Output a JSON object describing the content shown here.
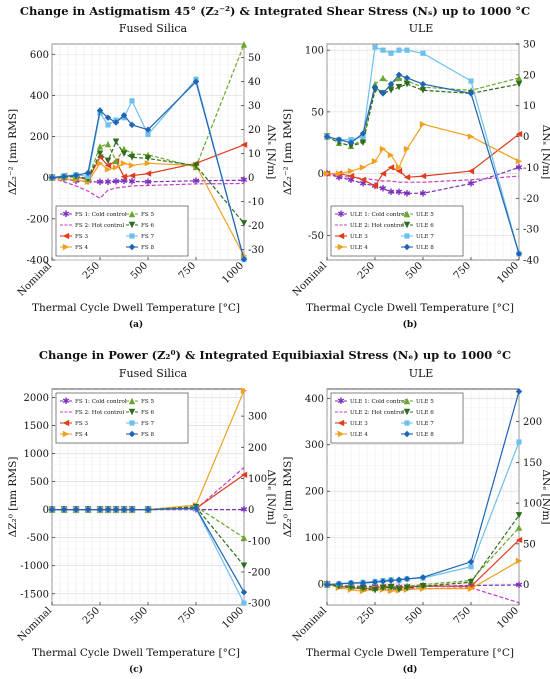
{
  "titles": {
    "top": "Change in Astigmatism 45° (Z₂⁻²) & Integrated Shear Stress (Nₛ) up to 1000 °C",
    "bottom": "Change in Power (Z₂⁰) & Integrated Equibiaxial Stress (Nₑ) up to 1000 °C"
  },
  "x_axis": {
    "label": "Thermal Cycle Dwell Temperature [°C]",
    "ticks": [
      {
        "x": 0,
        "label": "Nominal"
      },
      {
        "x": 3,
        "label": "250"
      },
      {
        "x": 6,
        "label": "500"
      },
      {
        "x": 9,
        "label": "750"
      },
      {
        "x": 12,
        "label": "1000"
      }
    ],
    "range": [
      0,
      12
    ]
  },
  "chart_data": [
    {
      "type": "line",
      "subtitle": "Fused Silica",
      "panel_label": "(a)",
      "ylabel": "ΔZ₂⁻² [nm RMS]",
      "y2label": "ΔNₛ [N/m]",
      "ylim": [
        -400,
        650
      ],
      "yticks": [
        -400,
        -200,
        0,
        200,
        400,
        600
      ],
      "y2lim": [
        -34.3,
        55.7
      ],
      "y2ticks": [
        -30,
        -20,
        -10,
        0,
        10,
        20,
        30,
        40,
        50
      ],
      "grid": true,
      "legend": "bottom-left",
      "legend_cols": 2,
      "x": [
        0,
        0.75,
        1.5,
        2.25,
        3,
        3.5,
        4,
        4.5,
        5,
        6,
        9,
        12
      ],
      "series": [
        {
          "name": "FS 1: Cold control",
          "color": "#7b2fbf",
          "dash": "4,2",
          "marker": "star",
          "axis": "left",
          "values": [
            0,
            -5,
            -15,
            -18,
            -22,
            -20,
            -18,
            -15,
            -18,
            -20,
            -15,
            -12
          ]
        },
        {
          "name": "FS 2: Hot control",
          "color": "#c040c0",
          "dash": "4,2",
          "marker": "none",
          "axis": "left",
          "values": [
            0,
            -20,
            -40,
            -65,
            -100,
            -60,
            -50,
            -45,
            -40,
            -38,
            -30,
            -28
          ]
        },
        {
          "name": "FS 3",
          "color": "#e03c1e",
          "dash": "",
          "marker": "tri-left",
          "axis": "left",
          "values": [
            0,
            10,
            5,
            -10,
            100,
            60,
            80,
            5,
            10,
            20,
            70,
            160
          ]
        },
        {
          "name": "FS 4",
          "color": "#f0a020",
          "dash": "",
          "marker": "tri-right",
          "axis": "left",
          "values": [
            0,
            -5,
            -10,
            -20,
            70,
            40,
            50,
            70,
            60,
            70,
            60,
            -380
          ]
        },
        {
          "name": "FS 5",
          "color": "#6aa52c",
          "dash": "4,2",
          "marker": "tri-up",
          "axis": "right",
          "values": [
            0,
            0.2,
            0.5,
            -0.3,
            13,
            14,
            7,
            12,
            10,
            9.5,
            4.5,
            55.5
          ]
        },
        {
          "name": "FS 6",
          "color": "#2e6b1f",
          "dash": "4,2",
          "marker": "tri-down",
          "axis": "right",
          "values": [
            0,
            0.3,
            0.5,
            -0.5,
            10,
            7,
            15,
            10,
            8.5,
            8,
            5,
            -19
          ]
        },
        {
          "name": "FS 7",
          "color": "#6ec0ec",
          "dash": "",
          "marker": "square",
          "axis": "right",
          "values": [
            0,
            0.8,
            1.2,
            0.5,
            27,
            22,
            24,
            25,
            32,
            18,
            41,
            -34
          ]
        },
        {
          "name": "FS 8",
          "color": "#1e64b4",
          "dash": "",
          "marker": "diamond",
          "axis": "right",
          "values": [
            0,
            0.5,
            1,
            2,
            28,
            25,
            23,
            26,
            22,
            20,
            40,
            -34
          ]
        }
      ]
    },
    {
      "type": "line",
      "subtitle": "ULE",
      "panel_label": "(b)",
      "ylabel": "ΔZ₂⁻² [nm RMS]",
      "y2label": "ΔNₛ [N/m]",
      "ylim": [
        -70,
        105
      ],
      "yticks": [
        -50,
        0,
        50,
        100
      ],
      "y2lim": [
        -40,
        30
      ],
      "y2ticks": [
        -40,
        -30,
        -20,
        -10,
        0,
        10,
        20,
        30
      ],
      "grid": true,
      "legend": "bottom-left",
      "legend_cols": 2,
      "x": [
        0,
        0.75,
        1.5,
        2.25,
        3,
        3.5,
        4,
        4.5,
        5,
        6,
        9,
        12
      ],
      "series": [
        {
          "name": "ULE 1: Cold control",
          "color": "#7b2fbf",
          "dash": "4,2",
          "marker": "star",
          "axis": "left",
          "values": [
            0,
            -3,
            -5,
            -8,
            -10,
            -12,
            -15,
            -15,
            -16,
            -16,
            -8,
            5
          ]
        },
        {
          "name": "ULE 2: Hot control",
          "color": "#c040c0",
          "dash": "4,2",
          "marker": "none",
          "axis": "left",
          "values": [
            0,
            -2,
            -3,
            -4,
            -5,
            -6,
            -6,
            -7,
            -7,
            -7,
            -5,
            -2
          ]
        },
        {
          "name": "ULE 3",
          "color": "#e03c1e",
          "dash": "",
          "marker": "tri-left",
          "axis": "left",
          "values": [
            0,
            0,
            -2,
            -5,
            -10,
            0,
            5,
            2,
            -3,
            -2,
            2,
            32
          ]
        },
        {
          "name": "ULE 4",
          "color": "#f0a020",
          "dash": "",
          "marker": "tri-right",
          "axis": "left",
          "values": [
            0,
            0,
            2,
            5,
            10,
            20,
            15,
            5,
            20,
            40,
            30,
            10
          ]
        },
        {
          "name": "ULE 5",
          "color": "#6aa52c",
          "dash": "4,2",
          "marker": "tri-up",
          "axis": "right",
          "values": [
            0,
            -2,
            -3,
            -1,
            17,
            19,
            17,
            19,
            18,
            16,
            15,
            19
          ]
        },
        {
          "name": "ULE 6",
          "color": "#2e6b1f",
          "dash": "4,2",
          "marker": "tri-down",
          "axis": "right",
          "values": [
            0,
            -2,
            -3,
            -2,
            15,
            14,
            15,
            16,
            17,
            15,
            14,
            17
          ]
        },
        {
          "name": "ULE 7",
          "color": "#6ec0ec",
          "dash": "",
          "marker": "square",
          "axis": "right",
          "values": [
            0,
            -1,
            -1,
            0,
            29,
            28,
            27,
            28,
            28,
            27,
            18,
            -38
          ]
        },
        {
          "name": "ULE 8",
          "color": "#1e64b4",
          "dash": "",
          "marker": "diamond",
          "axis": "right",
          "values": [
            0,
            -1,
            -2,
            1,
            16,
            14,
            17,
            20,
            19,
            17,
            14,
            -38
          ]
        }
      ]
    },
    {
      "type": "line",
      "subtitle": "Fused Silica",
      "panel_label": "(c)",
      "ylabel": "ΔZ₂⁰ [nm RMS]",
      "y2label": "ΔNₑ [N/m]",
      "ylim": [
        -1700,
        2150
      ],
      "yticks": [
        -1500,
        -1000,
        -500,
        0,
        500,
        1000,
        1500,
        2000
      ],
      "y2lim": [
        -306,
        387
      ],
      "y2ticks": [
        -300,
        -200,
        -100,
        0,
        100,
        200,
        300
      ],
      "grid": true,
      "legend": "top-left",
      "legend_cols": 2,
      "x": [
        0,
        0.75,
        1.5,
        2.25,
        3,
        3.5,
        4,
        4.5,
        5,
        6,
        9,
        12
      ],
      "series": [
        {
          "name": "FS 1: Cold control",
          "color": "#7b2fbf",
          "dash": "4,2",
          "marker": "star",
          "axis": "left",
          "values": [
            0,
            0,
            0,
            0,
            0,
            0,
            0,
            0,
            0,
            0,
            0,
            0
          ]
        },
        {
          "name": "FS 2: Hot control",
          "color": "#c040c0",
          "dash": "4,2",
          "marker": "none",
          "axis": "left",
          "values": [
            0,
            0,
            0,
            0,
            0,
            0,
            0,
            0,
            0,
            0,
            10,
            750
          ]
        },
        {
          "name": "FS 3",
          "color": "#e03c1e",
          "dash": "",
          "marker": "tri-left",
          "axis": "left",
          "values": [
            0,
            0,
            0,
            0,
            0,
            0,
            0,
            0,
            0,
            0,
            20,
            620
          ]
        },
        {
          "name": "FS 4",
          "color": "#f0a020",
          "dash": "",
          "marker": "tri-right",
          "axis": "left",
          "values": [
            0,
            0,
            0,
            0,
            0,
            0,
            0,
            0,
            0,
            0,
            80,
            2120
          ]
        },
        {
          "name": "FS 5",
          "color": "#6aa52c",
          "dash": "4,2",
          "marker": "tri-up",
          "axis": "right",
          "values": [
            0,
            0,
            0,
            0,
            0,
            0,
            0,
            0,
            0,
            0,
            10,
            -90
          ]
        },
        {
          "name": "FS 6",
          "color": "#2e6b1f",
          "dash": "4,2",
          "marker": "tri-down",
          "axis": "right",
          "values": [
            0,
            0,
            0,
            0,
            0,
            0,
            0,
            0,
            0,
            0,
            8,
            -180
          ]
        },
        {
          "name": "FS 7",
          "color": "#6ec0ec",
          "dash": "",
          "marker": "square",
          "axis": "right",
          "values": [
            0,
            0,
            0,
            0,
            0,
            0,
            0,
            0,
            0,
            0,
            4,
            -300
          ]
        },
        {
          "name": "FS 8",
          "color": "#1e64b4",
          "dash": "",
          "marker": "diamond",
          "axis": "right",
          "values": [
            0,
            0,
            0,
            0,
            0,
            0,
            0,
            0,
            0,
            0,
            5,
            -265
          ]
        }
      ]
    },
    {
      "type": "line",
      "subtitle": "ULE",
      "panel_label": "(d)",
      "ylabel": "ΔZ₂⁰ [nm RMS]",
      "y2label": "ΔNₑ [N/m]",
      "ylim": [
        -45,
        420
      ],
      "yticks": [
        0,
        100,
        200,
        300,
        400
      ],
      "y2lim": [
        -25,
        240
      ],
      "y2ticks": [
        0,
        50,
        100,
        150,
        200
      ],
      "grid": true,
      "legend": "top-left",
      "legend_cols": 2,
      "x": [
        0,
        0.75,
        1.5,
        2.25,
        3,
        3.5,
        4,
        4.5,
        5,
        6,
        9,
        12
      ],
      "series": [
        {
          "name": "ULE 1: Cold control",
          "color": "#7b2fbf",
          "dash": "4,2",
          "marker": "star",
          "axis": "left",
          "values": [
            0,
            -2,
            -4,
            -5,
            -5,
            -6,
            -6,
            -6,
            -6,
            -5,
            -3,
            -2
          ]
        },
        {
          "name": "ULE 2: Hot control",
          "color": "#c040c0",
          "dash": "4,2",
          "marker": "none",
          "axis": "left",
          "values": [
            0,
            -3,
            -5,
            -8,
            -10,
            -10,
            -12,
            -12,
            -10,
            -10,
            -8,
            -40
          ]
        },
        {
          "name": "ULE 3",
          "color": "#e03c1e",
          "dash": "",
          "marker": "tri-left",
          "axis": "left",
          "values": [
            0,
            -5,
            -8,
            -10,
            -8,
            -6,
            -5,
            -8,
            -6,
            -4,
            -5,
            95
          ]
        },
        {
          "name": "ULE 4",
          "color": "#f0a020",
          "dash": "",
          "marker": "tri-right",
          "axis": "left",
          "values": [
            0,
            -8,
            -12,
            -15,
            -10,
            -12,
            -15,
            -14,
            -12,
            -10,
            -10,
            50
          ]
        },
        {
          "name": "ULE 5",
          "color": "#6aa52c",
          "dash": "4,2",
          "marker": "tri-up",
          "axis": "right",
          "values": [
            0,
            0,
            -2,
            -3,
            -4,
            -2,
            -2,
            -3,
            -2,
            0,
            5,
            70
          ]
        },
        {
          "name": "ULE 6",
          "color": "#2e6b1f",
          "dash": "4,2",
          "marker": "tri-down",
          "axis": "right",
          "values": [
            0,
            -2,
            -3,
            -5,
            -7,
            -4,
            -3,
            -6,
            -4,
            -2,
            3,
            85
          ]
        },
        {
          "name": "ULE 7",
          "color": "#6ec0ec",
          "dash": "",
          "marker": "square",
          "axis": "right",
          "values": [
            0,
            1,
            2,
            3,
            4,
            5,
            6,
            5,
            7,
            8,
            22,
            175
          ]
        },
        {
          "name": "ULE 8",
          "color": "#1e64b4",
          "dash": "",
          "marker": "diamond",
          "axis": "right",
          "values": [
            0,
            1,
            2,
            2,
            3,
            4,
            5,
            6,
            7,
            9,
            28,
            237
          ]
        }
      ]
    }
  ]
}
